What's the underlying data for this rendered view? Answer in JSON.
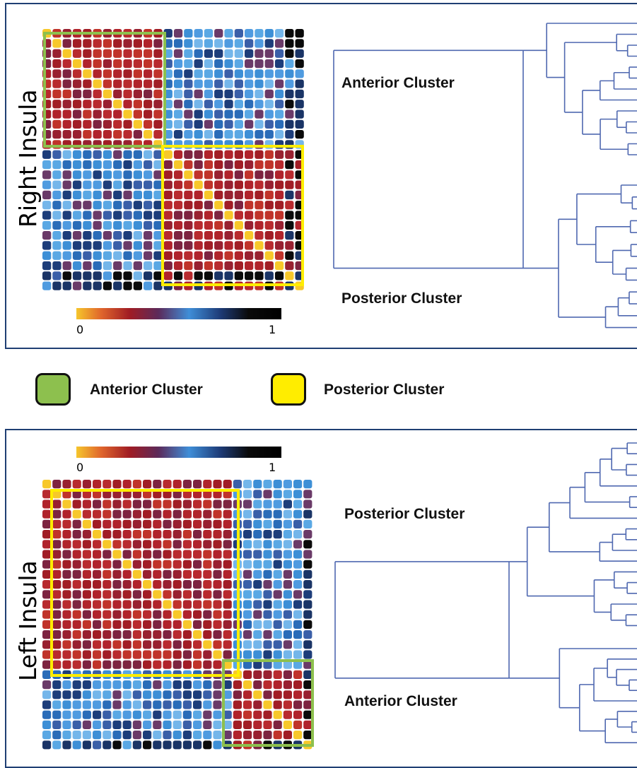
{
  "panels": {
    "right": {
      "side_label": "Right Insula",
      "cluster_top": "Anterior Cluster",
      "cluster_bottom": "Posterior Cluster"
    },
    "left": {
      "side_label": "Left Insula",
      "cluster_top": "Posterior Cluster",
      "cluster_bottom": "Anterior Cluster"
    }
  },
  "colorbar": {
    "min_label": "0",
    "max_label": "1"
  },
  "legend": {
    "anterior": {
      "label": "Anterior Cluster",
      "color": "#8dc04e"
    },
    "posterior": {
      "label": "Posterior Cluster",
      "color": "#ffed00"
    }
  },
  "colors": {
    "frame": "#1f3f73",
    "dendrogram": "#4f68b0"
  }
}
